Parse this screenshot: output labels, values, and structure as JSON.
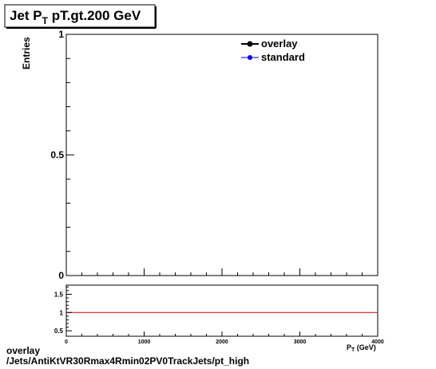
{
  "chart_data": {
    "type": "line",
    "title_main": "Jet P",
    "title_sub": "T",
    "title_rest": " pT.gt.200 GeV",
    "ylabel": "Entries",
    "xlabel_main": "P",
    "xlabel_sub": "T",
    "xlabel_rest": " (GeV)",
    "xlim": [
      0,
      4000
    ],
    "ylim": [
      0,
      1
    ],
    "x_ticks": [
      "0",
      "1000",
      "2000",
      "3000",
      "4000"
    ],
    "y_ticks": [
      "0",
      "0.5",
      "1"
    ],
    "legend_placement": "top-right",
    "series": [
      {
        "name": "overlay",
        "color": "#000000",
        "values": []
      },
      {
        "name": "standard",
        "color": "#0000ff",
        "values": []
      }
    ],
    "ratio_panel": {
      "ylim": [
        0.35,
        1.75
      ],
      "y_ticks": [
        "0.5",
        "1",
        "1.5"
      ],
      "reference_line": 1,
      "reference_color": "#cc0000"
    }
  },
  "footer": {
    "line1": "overlay",
    "line2": "/Jets/AntiKtVR30Rmax4Rmin02PV0TrackJets/pt_high"
  }
}
